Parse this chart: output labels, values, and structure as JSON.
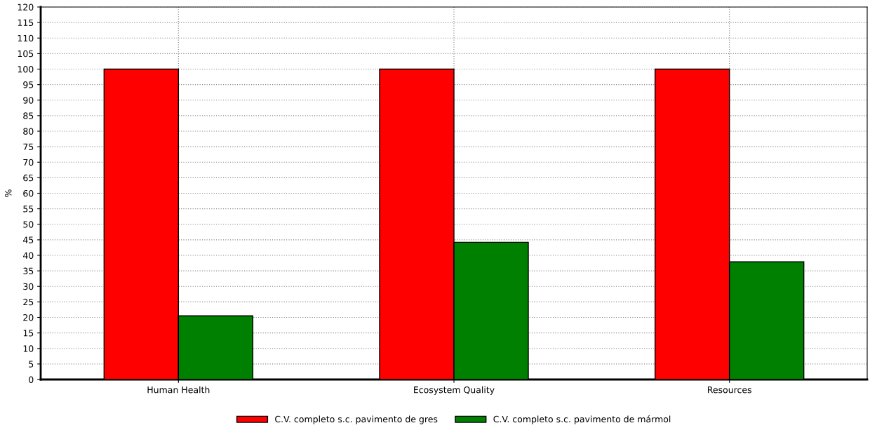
{
  "chart_data": {
    "type": "bar",
    "ylabel": "%",
    "categories": [
      "Human Health",
      "Ecosystem Quality",
      "Resources"
    ],
    "series": [
      {
        "name": "C.V. completo s.c. pavimento de gres",
        "color": "#ff0000",
        "values": [
          100,
          100,
          100
        ]
      },
      {
        "name": "C.V. completo s.c. pavimento de mármol",
        "color": "#008000",
        "values": [
          20.5,
          44.2,
          37.9
        ]
      }
    ],
    "ylim": [
      0,
      120
    ],
    "yticks": [
      0,
      5,
      10,
      15,
      20,
      25,
      30,
      35,
      40,
      45,
      50,
      55,
      60,
      65,
      70,
      75,
      80,
      85,
      90,
      95,
      100,
      105,
      110,
      115,
      120
    ],
    "grid": true,
    "legend": "bottom"
  }
}
